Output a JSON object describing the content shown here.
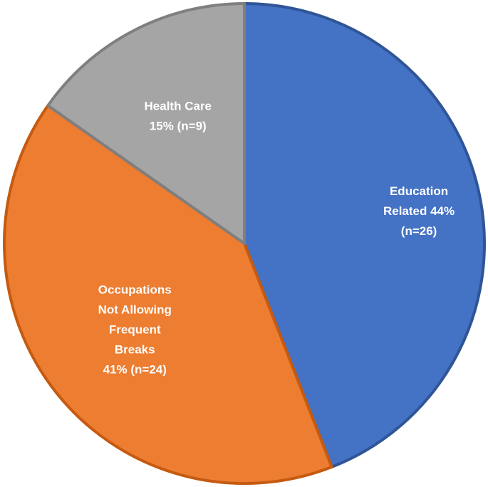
{
  "chart_data": {
    "type": "pie",
    "title": "",
    "start": "12 o'clock",
    "direction": "clockwise",
    "slices": [
      {
        "name": "Education Related",
        "value": 26,
        "percent": 44,
        "color": "#4472C4",
        "edge_color": "#2F5597",
        "label_lines": [
          "Education",
          "Related 44%",
          "(n=26)"
        ]
      },
      {
        "name": "Occupations Not Allowing Frequent Breaks",
        "value": 24,
        "percent": 41,
        "color": "#ED7D31",
        "edge_color": "#C55A11",
        "label_lines": [
          "Occupations",
          "Not Allowing",
          "Frequent",
          "Breaks",
          "41% (n=24)"
        ]
      },
      {
        "name": "Health Care",
        "value": 9,
        "percent": 15,
        "color": "#A5A5A5",
        "edge_color": "#7F7F7F",
        "label_lines": [
          "Health Care",
          "15% (n=9)"
        ]
      }
    ]
  }
}
